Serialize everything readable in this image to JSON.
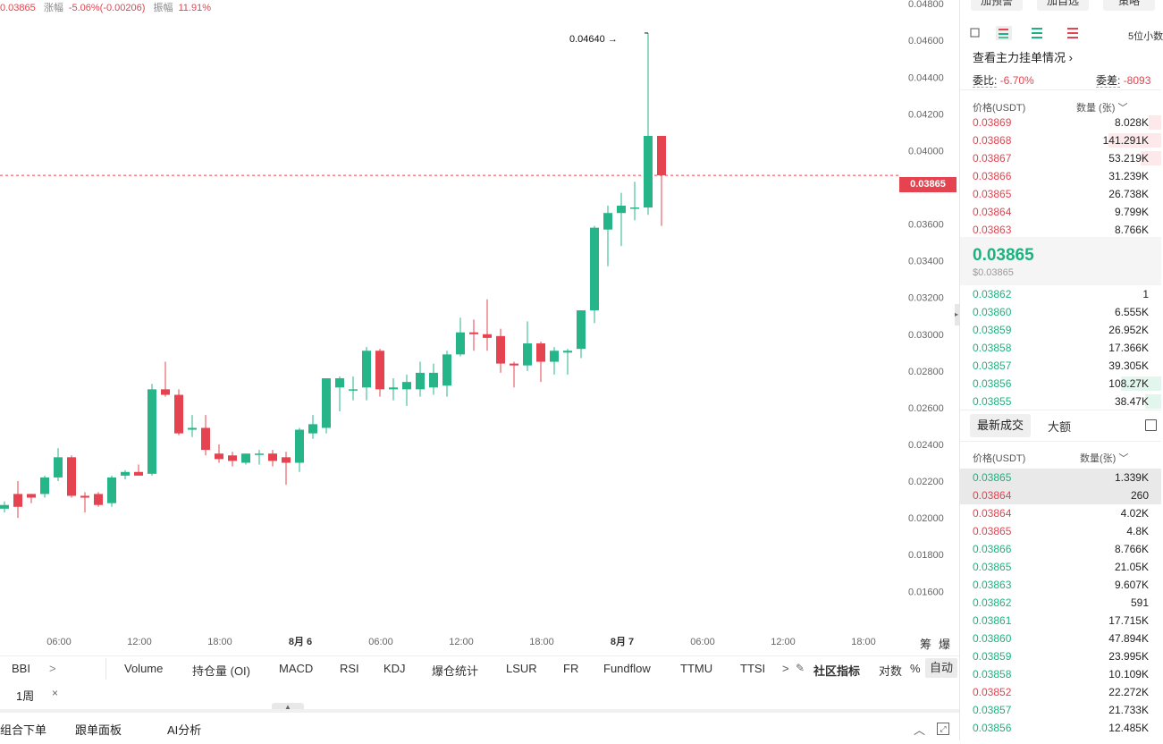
{
  "top_info": {
    "price": "0.03865",
    "change_label": "涨幅",
    "change_value": "-5.06%(-0.00206)",
    "amplitude_label": "振幅",
    "amplitude_value": "11.91%"
  },
  "chart_data": {
    "type": "candlestick",
    "ylim": [
      0.0146,
      0.0482
    ],
    "y_ticks": [
      "0.04800",
      "0.04600",
      "0.04400",
      "0.04200",
      "0.04000",
      "0.03800",
      "0.03600",
      "0.03400",
      "0.03200",
      "0.03000",
      "0.02800",
      "0.02600",
      "0.02400",
      "0.02200",
      "0.02000",
      "0.01800",
      "0.01600"
    ],
    "x_ticks": [
      {
        "label": "06:00",
        "bold": false
      },
      {
        "label": "12:00",
        "bold": false
      },
      {
        "label": "18:00",
        "bold": false
      },
      {
        "label": "8月 6",
        "bold": true
      },
      {
        "label": "06:00",
        "bold": false
      },
      {
        "label": "12:00",
        "bold": false
      },
      {
        "label": "18:00",
        "bold": false
      },
      {
        "label": "8月 7",
        "bold": true
      },
      {
        "label": "06:00",
        "bold": false
      },
      {
        "label": "12:00",
        "bold": false
      },
      {
        "label": "18:00",
        "bold": false
      }
    ],
    "candles": [
      [
        0.0205,
        0.0209,
        0.0203,
        0.0207
      ],
      [
        0.0213,
        0.022,
        0.02,
        0.0206
      ],
      [
        0.0213,
        0.0213,
        0.0208,
        0.0211
      ],
      [
        0.0213,
        0.0223,
        0.0211,
        0.0222
      ],
      [
        0.0222,
        0.0238,
        0.022,
        0.0233
      ],
      [
        0.0233,
        0.0234,
        0.0211,
        0.0212
      ],
      [
        0.0212,
        0.0214,
        0.0203,
        0.0211
      ],
      [
        0.0213,
        0.0214,
        0.0206,
        0.0207
      ],
      [
        0.0208,
        0.0223,
        0.0206,
        0.0222
      ],
      [
        0.0223,
        0.0226,
        0.0221,
        0.0225
      ],
      [
        0.0225,
        0.0229,
        0.0223,
        0.0223
      ],
      [
        0.0224,
        0.0273,
        0.0223,
        0.027
      ],
      [
        0.027,
        0.0285,
        0.0266,
        0.0267
      ],
      [
        0.0267,
        0.027,
        0.0245,
        0.0246
      ],
      [
        0.0248,
        0.0256,
        0.0244,
        0.0249
      ],
      [
        0.0249,
        0.0256,
        0.0234,
        0.0237
      ],
      [
        0.0235,
        0.024,
        0.023,
        0.0232
      ],
      [
        0.0234,
        0.0236,
        0.0228,
        0.0231
      ],
      [
        0.023,
        0.0235,
        0.0229,
        0.0235
      ],
      [
        0.0235,
        0.0237,
        0.0229,
        0.0235
      ],
      [
        0.0235,
        0.0237,
        0.0228,
        0.0231
      ],
      [
        0.0233,
        0.0236,
        0.0218,
        0.023
      ],
      [
        0.023,
        0.0249,
        0.0225,
        0.0248
      ],
      [
        0.0246,
        0.0256,
        0.0243,
        0.0251
      ],
      [
        0.0249,
        0.0276,
        0.0246,
        0.0276
      ],
      [
        0.0271,
        0.0277,
        0.0258,
        0.0276
      ],
      [
        0.027,
        0.0277,
        0.0264,
        0.027
      ],
      [
        0.0271,
        0.0293,
        0.0264,
        0.0291
      ],
      [
        0.0291,
        0.0292,
        0.0266,
        0.027
      ],
      [
        0.027,
        0.0276,
        0.0264,
        0.0271
      ],
      [
        0.027,
        0.0278,
        0.0261,
        0.0274
      ],
      [
        0.027,
        0.0285,
        0.0266,
        0.0279
      ],
      [
        0.0271,
        0.0284,
        0.0267,
        0.0279
      ],
      [
        0.0272,
        0.0291,
        0.0266,
        0.0289
      ],
      [
        0.0289,
        0.0309,
        0.0288,
        0.0301
      ],
      [
        0.0301,
        0.0308,
        0.0291,
        0.03
      ],
      [
        0.03,
        0.0319,
        0.0291,
        0.0298
      ],
      [
        0.0299,
        0.0303,
        0.0279,
        0.0284
      ],
      [
        0.0284,
        0.0285,
        0.0271,
        0.0283
      ],
      [
        0.0283,
        0.0307,
        0.028,
        0.0295
      ],
      [
        0.0295,
        0.0296,
        0.0274,
        0.0285
      ],
      [
        0.0285,
        0.0293,
        0.0278,
        0.0291
      ],
      [
        0.029,
        0.0292,
        0.0278,
        0.0291
      ],
      [
        0.0292,
        0.0313,
        0.0287,
        0.0313
      ],
      [
        0.0313,
        0.0359,
        0.0306,
        0.0358
      ],
      [
        0.0357,
        0.037,
        0.0337,
        0.0366
      ],
      [
        0.0366,
        0.0377,
        0.0348,
        0.037
      ],
      [
        0.0369,
        0.0383,
        0.0362,
        0.0369
      ],
      [
        0.0369,
        0.0464,
        0.0365,
        0.0408
      ],
      [
        0.0408,
        0.0408,
        0.0359,
        0.03865
      ]
    ],
    "max_label": "0.04640",
    "last_price": "0.03865"
  },
  "side_labels": [
    "筹",
    "爆"
  ],
  "indicators": {
    "items": [
      "BBI",
      "Volume",
      "持仓量 (OI)",
      "MACD",
      "RSI",
      "KDJ",
      "爆仓统计",
      "LSUR",
      "FR",
      "Fundflow",
      "TTMU",
      "TTSI"
    ],
    "community": "社区指标",
    "log_label": "对数",
    "pct_label": "%",
    "auto_label": "自动"
  },
  "period": {
    "label": "1周",
    "close": "×"
  },
  "bottom": {
    "items": [
      "组合下单",
      "跟单面板",
      "AI分析"
    ]
  },
  "panel": {
    "top_buttons": [
      "加预警",
      "加自选",
      "策略"
    ],
    "precision": "5位小数",
    "main_orders_link": "查看主力挂单情况",
    "ratio_label": "委比:",
    "ratio_value": "-6.70%",
    "diff_label": "委差:",
    "diff_value": "-8093",
    "book_header": {
      "price": "价格(USDT)",
      "qty": "数量 (张)"
    },
    "asks": [
      {
        "price": "0.03869",
        "qty": "8.028K",
        "depth": 0.06
      },
      {
        "price": "0.03868",
        "qty": "141.291K",
        "depth": 0.26
      },
      {
        "price": "0.03867",
        "qty": "53.219K",
        "depth": 0.1
      },
      {
        "price": "0.03866",
        "qty": "31.239K",
        "depth": 0.0
      },
      {
        "price": "0.03865",
        "qty": "26.738K",
        "depth": 0.0
      },
      {
        "price": "0.03864",
        "qty": "9.799K",
        "depth": 0.0
      },
      {
        "price": "0.03863",
        "qty": "8.766K",
        "depth": 0.0
      }
    ],
    "mid_price": "0.03865",
    "mid_usd": "$0.03865",
    "bids": [
      {
        "price": "0.03862",
        "qty": "1",
        "depth": 0.0
      },
      {
        "price": "0.03860",
        "qty": "6.555K",
        "depth": 0.0
      },
      {
        "price": "0.03859",
        "qty": "26.952K",
        "depth": 0.0
      },
      {
        "price": "0.03858",
        "qty": "17.366K",
        "depth": 0.0
      },
      {
        "price": "0.03857",
        "qty": "39.305K",
        "depth": 0.0
      },
      {
        "price": "0.03856",
        "qty": "108.27K",
        "depth": 0.2
      },
      {
        "price": "0.03855",
        "qty": "38.47K",
        "depth": 0.08
      }
    ],
    "trades_tab": "最新成交",
    "big_tab": "大额",
    "trades_header": {
      "price": "价格(USDT)",
      "qty": "数量(张)"
    },
    "trades": [
      {
        "price": "0.03865",
        "qty": "1.339K",
        "side": "buy",
        "hl": true
      },
      {
        "price": "0.03864",
        "qty": "260",
        "side": "sell",
        "hl": true
      },
      {
        "price": "0.03864",
        "qty": "4.02K",
        "side": "sell",
        "hl": false
      },
      {
        "price": "0.03865",
        "qty": "4.8K",
        "side": "sell",
        "hl": false
      },
      {
        "price": "0.03866",
        "qty": "8.766K",
        "side": "buy",
        "hl": false
      },
      {
        "price": "0.03865",
        "qty": "21.05K",
        "side": "buy",
        "hl": false
      },
      {
        "price": "0.03863",
        "qty": "9.607K",
        "side": "buy",
        "hl": false
      },
      {
        "price": "0.03862",
        "qty": "591",
        "side": "buy",
        "hl": false
      },
      {
        "price": "0.03861",
        "qty": "17.715K",
        "side": "buy",
        "hl": false
      },
      {
        "price": "0.03860",
        "qty": "47.894K",
        "side": "buy",
        "hl": false
      },
      {
        "price": "0.03859",
        "qty": "23.995K",
        "side": "buy",
        "hl": false
      },
      {
        "price": "0.03858",
        "qty": "10.109K",
        "side": "buy",
        "hl": false
      },
      {
        "price": "0.03852",
        "qty": "22.272K",
        "side": "sell",
        "hl": false
      },
      {
        "price": "0.03857",
        "qty": "21.733K",
        "side": "buy",
        "hl": false
      },
      {
        "price": "0.03856",
        "qty": "12.485K",
        "side": "buy",
        "hl": false
      }
    ]
  }
}
